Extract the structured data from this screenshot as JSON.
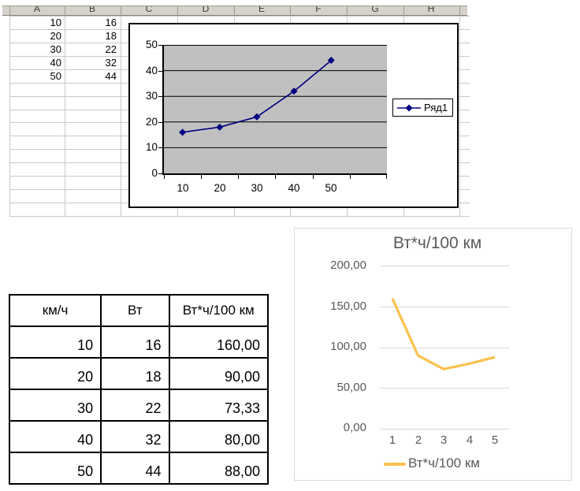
{
  "colors": {
    "classic_plot_bg": "#c0c0c0",
    "classic_series": "#000080",
    "sheet_header_bg": "#d6d2ca",
    "sheet_gridline": "#c8c8d0",
    "modern_text": "#595959",
    "modern_gridline": "#d9d9d9",
    "modern_series": "#fac14d"
  },
  "spreadsheet": {
    "column_headers": [
      "A",
      "B",
      "C",
      "D",
      "E",
      "F",
      "G",
      "H"
    ],
    "rows": [
      [
        "10",
        "16"
      ],
      [
        "20",
        "18"
      ],
      [
        "30",
        "22"
      ],
      [
        "40",
        "32"
      ],
      [
        "50",
        "44"
      ]
    ]
  },
  "classic_chart": {
    "y_ticks": [
      "50",
      "40",
      "30",
      "20",
      "10",
      "0"
    ],
    "x_ticks": [
      "10",
      "20",
      "30",
      "40",
      "50"
    ],
    "legend_label": "Ряд1"
  },
  "table": {
    "headers": [
      "км/ч",
      "Вт",
      "Вт*ч/100 км"
    ],
    "rows": [
      [
        "10",
        "16",
        "160,00"
      ],
      [
        "20",
        "18",
        "90,00"
      ],
      [
        "30",
        "22",
        "73,33"
      ],
      [
        "40",
        "32",
        "80,00"
      ],
      [
        "50",
        "44",
        "88,00"
      ]
    ]
  },
  "modern_chart": {
    "title": "Вт*ч/100 км",
    "y_ticks": [
      "200,00",
      "150,00",
      "100,00",
      "50,00",
      "0,00"
    ],
    "x_ticks": [
      "1",
      "2",
      "3",
      "4",
      "5"
    ],
    "legend_label": "Вт*ч/100 км"
  },
  "chart_data": [
    {
      "type": "line",
      "name": "Ряд1",
      "categories": [
        10,
        20,
        30,
        40,
        50
      ],
      "values": [
        16,
        18,
        22,
        32,
        44
      ],
      "title": "",
      "xlabel": "",
      "ylabel": "",
      "ylim": [
        0,
        50
      ],
      "ytick_step": 10,
      "legend_position": "right",
      "legend_entries": [
        "Ряд1"
      ],
      "marker": "diamond",
      "plot_bg": "#c0c0c0",
      "line_color": "#000080",
      "grid": "horizontal-black",
      "extra_blank_category_slot": true
    },
    {
      "type": "line",
      "name": "Вт*ч/100 км",
      "categories": [
        1,
        2,
        3,
        4,
        5
      ],
      "values": [
        160,
        90,
        73.33,
        80,
        88
      ],
      "title": "Вт*ч/100 км",
      "xlabel": "",
      "ylabel": "",
      "ylim": [
        0,
        200
      ],
      "ytick_step": 50,
      "legend_position": "bottom",
      "legend_entries": [
        "Вт*ч/100 км"
      ],
      "marker": "none",
      "line_color": "#fac14d",
      "grid": "horizontal-light"
    }
  ]
}
